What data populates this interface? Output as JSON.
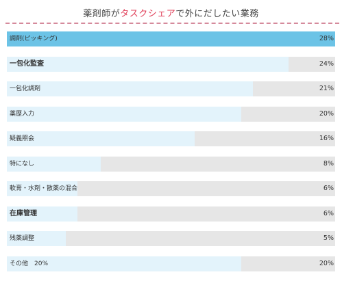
{
  "title": {
    "before": "薬剤師が",
    "accent": "タスクシェア",
    "after": "で外にだしたい業務"
  },
  "colors": {
    "accent": "#e0405a",
    "bar_top": "#6cc3e6",
    "bar_fill": "#e3f3fb",
    "bar_track": "#e6e6e6"
  },
  "chart_data": {
    "type": "bar",
    "orientation": "horizontal",
    "xlim": [
      0,
      28
    ],
    "categories": [
      "調剤(ピッキング)",
      "一包化監査",
      "一包化調剤",
      "薬歴入力",
      "疑義照会",
      "特になし",
      "軟膏・水剤・散薬の混合",
      "在庫管理",
      "残薬調整",
      "その他　20%"
    ],
    "values": [
      28,
      24,
      21,
      20,
      16,
      8,
      6,
      6,
      5,
      20
    ],
    "value_labels": [
      "28%",
      "24%",
      "21%",
      "20%",
      "16%",
      "8%",
      "6%",
      "6%",
      "5%",
      "20%"
    ],
    "bold": [
      false,
      true,
      false,
      false,
      false,
      false,
      false,
      true,
      false,
      false
    ]
  }
}
